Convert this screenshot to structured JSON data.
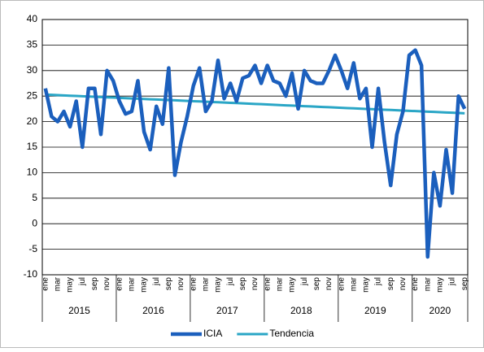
{
  "chart_data": {
    "type": "line",
    "categories": [
      "ene",
      null,
      "mar",
      null,
      "may",
      null,
      "jul",
      null,
      "sep",
      null,
      "nov",
      null,
      "ene",
      null,
      "mar",
      null,
      "may",
      null,
      "jul",
      null,
      "sep",
      null,
      "nov",
      null,
      "ene",
      null,
      "mar",
      null,
      "may",
      null,
      "jul",
      null,
      "sep",
      null,
      "nov",
      null,
      "ene",
      null,
      "mar",
      null,
      "may",
      null,
      "jul",
      null,
      "sep",
      null,
      "nov",
      null,
      "ene",
      null,
      "mar",
      null,
      "may",
      null,
      "jul",
      null,
      "sep",
      null,
      "nov",
      null,
      "ene",
      null,
      "mar",
      null,
      "may",
      null,
      "jul",
      null,
      "sep"
    ],
    "year_groups": [
      "2015",
      "2016",
      "2017",
      "2018",
      "2019",
      "2020"
    ],
    "series": [
      {
        "name": "ICIA",
        "color": "#1b5fbd",
        "values": [
          26.5,
          21,
          20,
          22,
          19,
          24,
          15,
          26.5,
          26.5,
          17.5,
          30,
          28,
          24,
          21.5,
          22,
          28,
          18,
          14.5,
          23,
          19.5,
          30.5,
          9.5,
          16,
          21,
          27,
          30.5,
          22,
          24,
          32,
          24.5,
          27.5,
          24,
          28.5,
          29,
          31,
          27.5,
          31,
          28,
          27.5,
          25,
          29.5,
          22.5,
          30,
          28,
          27.5,
          27.5,
          30,
          33,
          30,
          26.5,
          31.5,
          24.5,
          26.5,
          15,
          26.5,
          16,
          7.5,
          17.5,
          22,
          33,
          34,
          31,
          -6.5,
          10,
          3.5,
          14.5,
          6,
          25,
          22.5
        ]
      },
      {
        "name": "Tendencia",
        "color": "#2aa6c6",
        "values": [
          25.3,
          25.25,
          25.19,
          25.14,
          25.08,
          25.03,
          24.98,
          24.92,
          24.87,
          24.81,
          24.76,
          24.71,
          24.65,
          24.6,
          24.54,
          24.49,
          24.44,
          24.38,
          24.33,
          24.27,
          24.22,
          24.17,
          24.11,
          24.06,
          24.0,
          23.95,
          23.9,
          23.84,
          23.79,
          23.73,
          23.68,
          23.63,
          23.57,
          23.52,
          23.46,
          23.41,
          23.36,
          23.3,
          23.25,
          23.19,
          23.14,
          23.09,
          23.03,
          22.98,
          22.92,
          22.87,
          22.82,
          22.76,
          22.71,
          22.65,
          22.6,
          22.55,
          22.49,
          22.44,
          22.38,
          22.33,
          22.28,
          22.22,
          22.17,
          22.11,
          22.06,
          22.01,
          21.95,
          21.9,
          21.84,
          21.79,
          21.74,
          21.68,
          21.63
        ]
      }
    ],
    "ylim": [
      -10,
      40
    ],
    "yticks": [
      -10,
      -5,
      0,
      5,
      10,
      15,
      20,
      25,
      30,
      35,
      40
    ],
    "grid": true
  }
}
